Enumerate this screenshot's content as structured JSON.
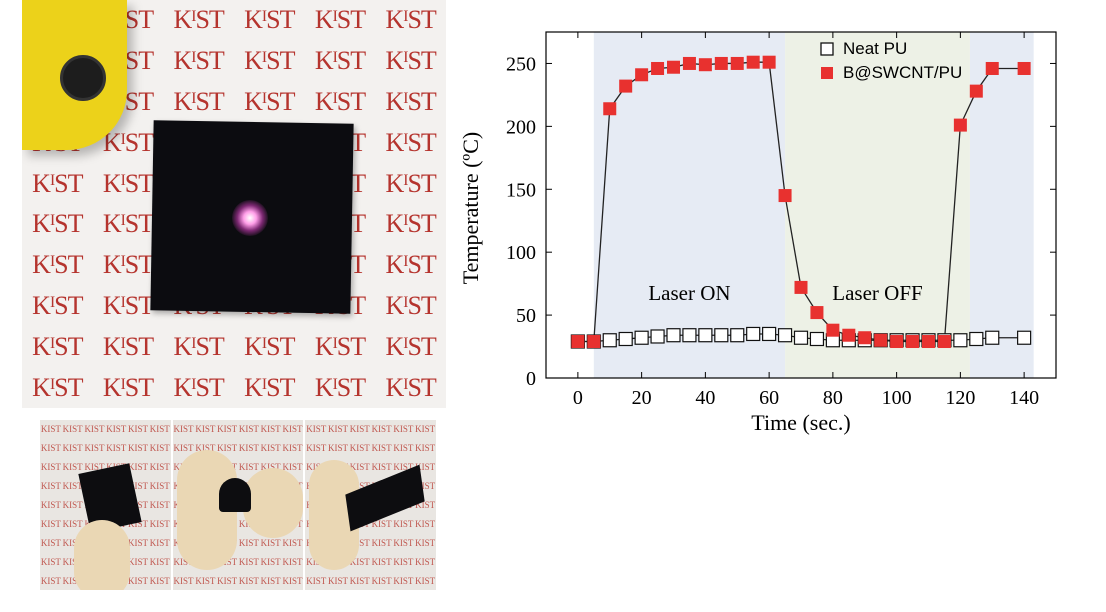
{
  "photos": {
    "logo_text": "KIST",
    "laser_label": "laser-device",
    "sample_label": "B@SWCNT/PU film under laser",
    "strip_panels": [
      "flat",
      "bent",
      "twisted"
    ]
  },
  "chart_data": {
    "type": "scatter",
    "title": "",
    "xlabel": "Time (sec.)",
    "ylabel": "Temperature (ºC)",
    "xlim": [
      -10,
      150
    ],
    "ylim": [
      0,
      275
    ],
    "xticks": [
      0,
      20,
      40,
      60,
      80,
      100,
      120,
      140
    ],
    "yticks": [
      0,
      50,
      100,
      150,
      200,
      250
    ],
    "regions": [
      {
        "label": "Laser ON",
        "x0": 5,
        "x1": 65,
        "color": "#e6ebf4"
      },
      {
        "label": "Laser OFF",
        "x0": 65,
        "x1": 123,
        "color": "#edf1e6"
      },
      {
        "label": "",
        "x0": 123,
        "x1": 143,
        "color": "#e6ebf4"
      }
    ],
    "legend_position": "top-right",
    "series": [
      {
        "name": "Neat PU",
        "marker": "open-square",
        "color": "#111111",
        "x": [
          0,
          5,
          10,
          15,
          20,
          25,
          30,
          35,
          40,
          45,
          50,
          55,
          60,
          65,
          70,
          75,
          80,
          85,
          90,
          95,
          100,
          105,
          110,
          115,
          120,
          125,
          130,
          140
        ],
        "y": [
          29,
          29,
          30,
          31,
          32,
          33,
          34,
          34,
          34,
          34,
          34,
          35,
          35,
          34,
          32,
          31,
          30,
          30,
          30,
          30,
          30,
          30,
          30,
          30,
          30,
          31,
          32,
          32
        ]
      },
      {
        "name": "B@SWCNT/PU",
        "marker": "filled-square",
        "color": "#e8312f",
        "x": [
          0,
          5,
          10,
          15,
          20,
          25,
          30,
          35,
          40,
          45,
          50,
          55,
          60,
          65,
          70,
          75,
          80,
          85,
          90,
          95,
          100,
          105,
          110,
          115,
          120,
          125,
          130,
          140
        ],
        "y": [
          29,
          29,
          214,
          232,
          241,
          246,
          247,
          250,
          249,
          250,
          250,
          251,
          251,
          145,
          72,
          52,
          38,
          34,
          32,
          30,
          29,
          29,
          29,
          29,
          201,
          228,
          246,
          246
        ]
      }
    ]
  }
}
